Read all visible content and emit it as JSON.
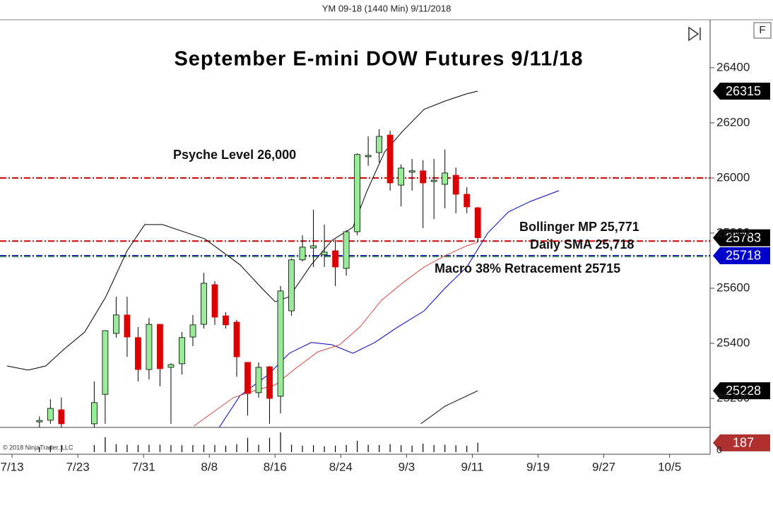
{
  "header": "YM 09-18 (1440 Min)  9/11/2018",
  "copyright": "© 2018 NinjaTrader, LLC",
  "button": "F",
  "chart_data": {
    "type": "candlestick",
    "title": "September E-mini DOW Futures 9/11/18",
    "x": [
      0,
      1,
      2,
      5,
      6,
      7,
      8,
      9,
      10,
      11,
      12,
      13,
      14,
      15,
      16,
      17,
      18,
      19,
      20,
      21,
      22,
      23,
      24,
      25,
      26,
      27,
      28,
      29,
      30,
      31,
      32,
      33,
      34,
      35,
      36,
      37,
      38,
      39,
      40
    ],
    "open": [
      25115,
      25121,
      25159,
      25108,
      25215,
      25436,
      25503,
      25421,
      25305,
      25469,
      25313,
      25326,
      25423,
      25469,
      25613,
      25500,
      25477,
      25331,
      25221,
      25315,
      25208,
      25518,
      25703,
      25746,
      25721,
      25736,
      25672,
      25805,
      26077,
      26092,
      26156,
      25974,
      26021,
      26026,
      25987,
      25977,
      26010,
      25941,
      25892
    ],
    "high": [
      25135,
      25197,
      25203,
      25262,
      25446,
      25569,
      25569,
      25459,
      25492,
      25469,
      25328,
      25441,
      25503,
      25656,
      25626,
      25513,
      25485,
      25331,
      25331,
      25318,
      25608,
      25708,
      25792,
      25885,
      25831,
      25777,
      25810,
      26090,
      26151,
      26177,
      26172,
      26049,
      26069,
      26064,
      26069,
      26103,
      26038,
      25967,
      25895
    ],
    "low": [
      25095,
      25108,
      25095,
      25095,
      25108,
      25420,
      25351,
      25262,
      25269,
      25244,
      25108,
      25287,
      25390,
      25454,
      25467,
      25454,
      25279,
      25138,
      25203,
      25108,
      25146,
      25500,
      25697,
      25677,
      25677,
      25608,
      25646,
      25792,
      26044,
      26056,
      25954,
      25897,
      25954,
      25818,
      25851,
      25890,
      25872,
      25872,
      25767
    ],
    "close": [
      25120,
      25164,
      25108,
      25185,
      25446,
      25503,
      25423,
      25305,
      25469,
      25308,
      25323,
      25421,
      25467,
      25618,
      25495,
      25467,
      25351,
      25218,
      25313,
      25200,
      25590,
      25703,
      25749,
      25754,
      25731,
      25677,
      25805,
      26085,
      26082,
      26151,
      25982,
      26036,
      26026,
      25982,
      25992,
      26018,
      25941,
      25895,
      25783
    ],
    "up_color": "#98ec98",
    "down_color": "#dd0000",
    "volume": [
      100,
      130,
      140,
      144,
      300,
      160,
      150,
      144,
      150,
      150,
      144,
      140,
      144,
      150,
      144,
      130,
      160,
      290,
      150,
      290,
      400,
      150,
      130,
      140,
      120,
      130,
      144,
      230,
      150,
      144,
      160,
      140,
      130,
      170,
      144,
      150,
      140,
      130,
      187
    ],
    "vlim": [
      0,
      470
    ],
    "vticks": [
      0
    ],
    "volume_marker_color": "#b03030",
    "lines": [
      {
        "color": "#000000",
        "x": [
          -2.97,
          -1.03,
          0.58,
          2.19,
          4.13,
          6.06,
          8.0,
          9.61,
          11.23,
          15.1,
          18.3,
          20.3,
          21.5,
          22.8,
          24.8,
          26.7,
          28.6,
          29.9,
          31.5,
          33.2,
          35.1,
          37.0,
          38.97,
          40.0
        ],
        "values": [
          25318,
          25303,
          25318,
          25377,
          25441,
          25569,
          25736,
          25831,
          25831,
          25779,
          25685,
          25600,
          25551,
          25569,
          25685,
          25774,
          25821,
          25954,
          26095,
          26172,
          26249,
          26279,
          26305,
          26315
        ]
      },
      {
        "color": "#000000",
        "x": [
          34.8,
          37.0,
          40.0
        ],
        "values": [
          25108,
          25172,
          25228
        ]
      },
      {
        "color": "#0000cc",
        "x": [
          16.4,
          18.3,
          20.9,
          22.8,
          24.8,
          26.7,
          28.6,
          30.6,
          32.5,
          35.1,
          37.0,
          39.0,
          40.9,
          42.8,
          44.8,
          47.4
        ],
        "values": [
          25095,
          25210,
          25287,
          25364,
          25403,
          25395,
          25364,
          25403,
          25454,
          25518,
          25600,
          25677,
          25800,
          25877,
          25915,
          25954
        ]
      },
      {
        "color": "#dd4444",
        "x": [
          14.1,
          15.7,
          17.7,
          19.6,
          21.5,
          23.5,
          25.4,
          27.4,
          29.3,
          31.2,
          33.2,
          35.1,
          37.0,
          39.0,
          40.0
        ],
        "values": [
          25100,
          25146,
          25203,
          25228,
          25249,
          25313,
          25369,
          25395,
          25462,
          25556,
          25621,
          25677,
          25718,
          25754,
          25767
        ]
      }
    ],
    "levels": [
      {
        "value": 26000,
        "label": "Psyche Level 26,000",
        "color": "#cc0000"
      },
      {
        "value": 25771,
        "label": "Bollinger MP 25,771",
        "color": "#cc0000"
      },
      {
        "value": 25718,
        "label": "Daily SMA 25,718",
        "color": "#0000cc"
      },
      {
        "value": 25715,
        "label": "Macro 38% Retracement 25715",
        "color": "#4a8a6a"
      }
    ],
    "xlim": [
      -3.6,
      61.2
    ],
    "xticks": [
      {
        "value": -2.5,
        "label": "7/13"
      },
      {
        "value": 3.5,
        "label": "7/23"
      },
      {
        "value": 9.5,
        "label": "7/31"
      },
      {
        "value": 15.5,
        "label": "8/8"
      },
      {
        "value": 21.5,
        "label": "8/16"
      },
      {
        "value": 27.5,
        "label": "8/24"
      },
      {
        "value": 33.5,
        "label": "9/3"
      },
      {
        "value": 39.5,
        "label": "9/11"
      },
      {
        "value": 45.5,
        "label": "9/19"
      },
      {
        "value": 51.5,
        "label": "9/27"
      },
      {
        "value": 57.5,
        "label": "10/5"
      }
    ],
    "ylim": [
      25095,
      26574
    ],
    "yticks": [
      25200,
      25400,
      25600,
      25800,
      26000,
      26200,
      26400
    ]
  }
}
